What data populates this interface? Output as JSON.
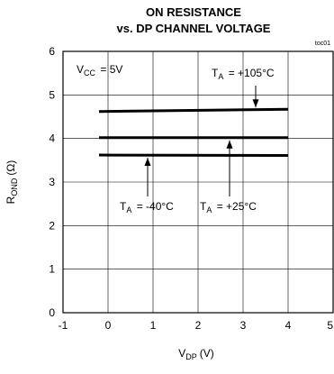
{
  "chart_data": {
    "type": "line",
    "title": [
      "ON RESISTANCE",
      "vs. DP CHANNEL VOLTAGE"
    ],
    "figure_id": "toc01",
    "xlabel": {
      "main": "V",
      "sub": "DP",
      "unit": "(V)"
    },
    "ylabel": {
      "main": "R",
      "sub": "OND",
      "unit": "(Ω)"
    },
    "xlim": [
      -1,
      5
    ],
    "ylim": [
      0,
      6
    ],
    "x_ticks": [
      -1,
      0,
      1,
      2,
      3,
      4,
      5
    ],
    "y_ticks": [
      0,
      1,
      2,
      3,
      4,
      5,
      6
    ],
    "grid": true,
    "series": [
      {
        "label_main": "T",
        "label_sub": "A",
        "label_value": "= +105°C",
        "x": [
          -0.2,
          4.0
        ],
        "y": [
          4.62,
          4.67
        ]
      },
      {
        "label_main": "T",
        "label_sub": "A",
        "label_value": "= +25°C",
        "x": [
          -0.2,
          4.0
        ],
        "y": [
          4.02,
          4.02
        ]
      },
      {
        "label_main": "T",
        "label_sub": "A",
        "label_value": "= -40°C",
        "x": [
          -0.2,
          4.0
        ],
        "y": [
          3.62,
          3.61
        ]
      }
    ],
    "condition": {
      "main": "V",
      "sub": "CC",
      "value": "= 5V"
    }
  }
}
